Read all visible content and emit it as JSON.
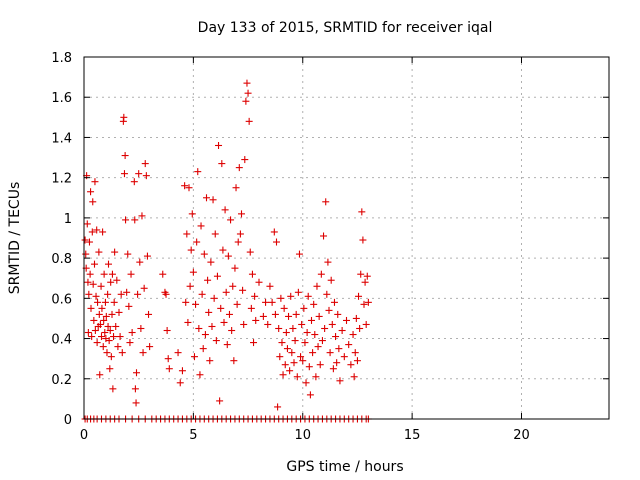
{
  "chart_data": {
    "type": "scatter",
    "title": "Day 133 of 2015, SRMTID for receiver iqal",
    "xlabel": "GPS time / hours",
    "ylabel": "SRMTID / TECUs",
    "xlim": [
      0,
      24
    ],
    "ylim": [
      0,
      1.8
    ],
    "xticks": [
      0,
      5,
      10,
      15,
      20
    ],
    "yticks": [
      0,
      0.2,
      0.4,
      0.6,
      0.8,
      1,
      1.2,
      1.4,
      1.6,
      1.8
    ],
    "ytick_labels": [
      "0",
      "0.2",
      "0.4",
      "0.6",
      "0.8",
      "1",
      "1.2",
      "1.4",
      "1.6",
      "1.8"
    ],
    "grid": true,
    "marker": "+",
    "color": "#dd0000",
    "series": [
      {
        "name": "SRMTID",
        "points": [
          [
            0.05,
            0.89
          ],
          [
            0.08,
            0.82
          ],
          [
            0.1,
            0.75
          ],
          [
            0.12,
            1.21
          ],
          [
            0.15,
            0.97
          ],
          [
            0.18,
            0.68
          ],
          [
            0.2,
            0.43
          ],
          [
            0.22,
            0.62
          ],
          [
            0.25,
            0.88
          ],
          [
            0.28,
            0.72
          ],
          [
            0.3,
            1.13
          ],
          [
            0.32,
            0.55
          ],
          [
            0.35,
            0.41
          ],
          [
            0.38,
            0.93
          ],
          [
            0.4,
            1.08
          ],
          [
            0.42,
            0.67
          ],
          [
            0.45,
            0.49
          ],
          [
            0.48,
            0.77
          ],
          [
            0.5,
            1.18
          ],
          [
            0.52,
            0.44
          ],
          [
            0.55,
            0.61
          ],
          [
            0.58,
            0.94
          ],
          [
            0.6,
            0.38
          ],
          [
            0.62,
            0.58
          ],
          [
            0.65,
            0.46
          ],
          [
            0.68,
            0.83
          ],
          [
            0.7,
            0.52
          ],
          [
            0.72,
            0.22
          ],
          [
            0.75,
            0.47
          ],
          [
            0.78,
            0.66
          ],
          [
            0.8,
            0.41
          ],
          [
            0.82,
            0.55
          ],
          [
            0.85,
            0.93
          ],
          [
            0.88,
            0.36
          ],
          [
            0.9,
            0.49
          ],
          [
            0.92,
            0.72
          ],
          [
            0.95,
            0.43
          ],
          [
            0.98,
            0.58
          ],
          [
            1.0,
            0.4
          ],
          [
            1.02,
            0.51
          ],
          [
            1.05,
            0.33
          ],
          [
            1.08,
            0.62
          ],
          [
            1.1,
            0.46
          ],
          [
            1.12,
            0.77
          ],
          [
            1.15,
            0.39
          ],
          [
            1.18,
            0.25
          ],
          [
            1.2,
            0.44
          ],
          [
            1.22,
            0.68
          ],
          [
            1.25,
            0.31
          ],
          [
            1.28,
            0.52
          ],
          [
            1.3,
            0.72
          ],
          [
            1.32,
            0.15
          ],
          [
            1.35,
            0.41
          ],
          [
            1.38,
            0.58
          ],
          [
            1.4,
            0.83
          ],
          [
            1.45,
            0.46
          ],
          [
            1.5,
            0.69
          ],
          [
            1.55,
            0.36
          ],
          [
            1.6,
            0.53
          ],
          [
            1.65,
            0.41
          ],
          [
            1.7,
            0.62
          ],
          [
            1.75,
            0.33
          ],
          [
            1.8,
            1.48
          ],
          [
            1.82,
            1.5
          ],
          [
            1.85,
            1.22
          ],
          [
            1.88,
            1.31
          ],
          [
            1.9,
            0.99
          ],
          [
            1.95,
            0.63
          ],
          [
            2.0,
            0.82
          ],
          [
            2.05,
            0.56
          ],
          [
            2.1,
            0.38
          ],
          [
            2.15,
            0.72
          ],
          [
            2.2,
            0.43
          ],
          [
            2.3,
            1.18
          ],
          [
            2.32,
            0.99
          ],
          [
            2.35,
            0.15
          ],
          [
            2.38,
            0.08
          ],
          [
            2.4,
            0.23
          ],
          [
            2.45,
            0.62
          ],
          [
            2.5,
            1.22
          ],
          [
            2.55,
            0.78
          ],
          [
            2.6,
            0.45
          ],
          [
            2.65,
            1.01
          ],
          [
            2.7,
            0.33
          ],
          [
            2.75,
            0.65
          ],
          [
            2.8,
            1.27
          ],
          [
            2.85,
            1.21
          ],
          [
            2.9,
            0.81
          ],
          [
            2.95,
            0.52
          ],
          [
            3.0,
            0.36
          ],
          [
            3.6,
            0.72
          ],
          [
            3.7,
            0.63
          ],
          [
            3.75,
            0.62
          ],
          [
            3.8,
            0.44
          ],
          [
            3.85,
            0.3
          ],
          [
            3.9,
            0.25
          ],
          [
            4.3,
            0.33
          ],
          [
            4.4,
            0.18
          ],
          [
            4.5,
            0.24
          ],
          [
            4.6,
            1.16
          ],
          [
            4.65,
            0.58
          ],
          [
            4.7,
            0.92
          ],
          [
            4.75,
            0.48
          ],
          [
            4.8,
            1.15
          ],
          [
            4.85,
            0.66
          ],
          [
            4.9,
            0.84
          ],
          [
            4.95,
            1.02
          ],
          [
            5.0,
            0.73
          ],
          [
            5.05,
            0.31
          ],
          [
            5.1,
            0.57
          ],
          [
            5.15,
            0.88
          ],
          [
            5.2,
            1.23
          ],
          [
            5.25,
            0.45
          ],
          [
            5.3,
            0.22
          ],
          [
            5.35,
            0.96
          ],
          [
            5.4,
            0.62
          ],
          [
            5.45,
            0.35
          ],
          [
            5.5,
            0.82
          ],
          [
            5.55,
            0.42
          ],
          [
            5.6,
            1.1
          ],
          [
            5.65,
            0.69
          ],
          [
            5.7,
            0.53
          ],
          [
            5.75,
            0.29
          ],
          [
            5.8,
            0.78
          ],
          [
            5.85,
            0.46
          ],
          [
            5.9,
            1.09
          ],
          [
            5.95,
            0.6
          ],
          [
            6.0,
            0.92
          ],
          [
            6.05,
            0.39
          ],
          [
            6.1,
            0.71
          ],
          [
            6.15,
            1.36
          ],
          [
            6.2,
            0.09
          ],
          [
            6.25,
            0.55
          ],
          [
            6.3,
            1.27
          ],
          [
            6.35,
            0.84
          ],
          [
            6.4,
            0.48
          ],
          [
            6.45,
            1.04
          ],
          [
            6.5,
            0.63
          ],
          [
            6.55,
            0.37
          ],
          [
            6.6,
            0.81
          ],
          [
            6.65,
            0.52
          ],
          [
            6.7,
            0.99
          ],
          [
            6.75,
            0.44
          ],
          [
            6.8,
            0.66
          ],
          [
            6.85,
            0.29
          ],
          [
            6.9,
            0.75
          ],
          [
            6.95,
            1.15
          ],
          [
            7.0,
            0.57
          ],
          [
            7.05,
            0.88
          ],
          [
            7.1,
            1.25
          ],
          [
            7.15,
            0.92
          ],
          [
            7.2,
            1.02
          ],
          [
            7.25,
            0.64
          ],
          [
            7.3,
            0.47
          ],
          [
            7.35,
            1.29
          ],
          [
            7.4,
            1.58
          ],
          [
            7.45,
            1.67
          ],
          [
            7.5,
            1.62
          ],
          [
            7.55,
            1.48
          ],
          [
            7.6,
            0.83
          ],
          [
            7.65,
            0.55
          ],
          [
            7.7,
            0.72
          ],
          [
            7.75,
            0.38
          ],
          [
            7.8,
            0.61
          ],
          [
            7.85,
            0.49
          ],
          [
            8.0,
            0.68
          ],
          [
            8.2,
            0.51
          ],
          [
            8.3,
            0.58
          ],
          [
            8.4,
            0.47
          ],
          [
            8.5,
            0.66
          ],
          [
            8.6,
            0.58
          ],
          [
            8.7,
            0.93
          ],
          [
            8.75,
            0.52
          ],
          [
            8.8,
            0.88
          ],
          [
            8.85,
            0.06
          ],
          [
            8.9,
            0.45
          ],
          [
            8.95,
            0.31
          ],
          [
            9.0,
            0.6
          ],
          [
            9.05,
            0.38
          ],
          [
            9.1,
            0.22
          ],
          [
            9.15,
            0.55
          ],
          [
            9.2,
            0.27
          ],
          [
            9.25,
            0.43
          ],
          [
            9.3,
            0.35
          ],
          [
            9.35,
            0.51
          ],
          [
            9.4,
            0.24
          ],
          [
            9.45,
            0.61
          ],
          [
            9.5,
            0.33
          ],
          [
            9.55,
            0.45
          ],
          [
            9.6,
            0.28
          ],
          [
            9.65,
            0.39
          ],
          [
            9.7,
            0.52
          ],
          [
            9.75,
            0.21
          ],
          [
            9.8,
            0.63
          ],
          [
            9.85,
            0.82
          ],
          [
            9.9,
            0.31
          ],
          [
            9.95,
            0.47
          ],
          [
            10.0,
            0.29
          ],
          [
            10.05,
            0.55
          ],
          [
            10.1,
            0.38
          ],
          [
            10.15,
            0.18
          ],
          [
            10.2,
            0.43
          ],
          [
            10.25,
            0.61
          ],
          [
            10.3,
            0.26
          ],
          [
            10.35,
            0.12
          ],
          [
            10.4,
            0.49
          ],
          [
            10.45,
            0.33
          ],
          [
            10.5,
            0.57
          ],
          [
            10.55,
            0.42
          ],
          [
            10.6,
            0.21
          ],
          [
            10.65,
            0.66
          ],
          [
            10.7,
            0.36
          ],
          [
            10.75,
            0.51
          ],
          [
            10.8,
            0.27
          ],
          [
            10.85,
            0.72
          ],
          [
            10.9,
            0.39
          ],
          [
            10.95,
            0.91
          ],
          [
            11.0,
            0.45
          ],
          [
            11.05,
            1.08
          ],
          [
            11.1,
            0.62
          ],
          [
            11.15,
            0.78
          ],
          [
            11.2,
            0.54
          ],
          [
            11.25,
            0.33
          ],
          [
            11.3,
            0.69
          ],
          [
            11.35,
            0.47
          ],
          [
            11.4,
            0.25
          ],
          [
            11.45,
            0.58
          ],
          [
            11.5,
            0.41
          ],
          [
            11.55,
            0.28
          ],
          [
            11.6,
            0.52
          ],
          [
            11.65,
            0.35
          ],
          [
            11.7,
            0.19
          ],
          [
            11.8,
            0.44
          ],
          [
            11.9,
            0.31
          ],
          [
            12.0,
            0.49
          ],
          [
            12.1,
            0.37
          ],
          [
            12.2,
            0.27
          ],
          [
            12.3,
            0.42
          ],
          [
            12.35,
            0.21
          ],
          [
            12.4,
            0.33
          ],
          [
            12.45,
            0.5
          ],
          [
            12.5,
            0.29
          ],
          [
            12.55,
            0.61
          ],
          [
            12.6,
            0.45
          ],
          [
            12.65,
            0.72
          ],
          [
            12.7,
            1.03
          ],
          [
            12.75,
            0.89
          ],
          [
            12.8,
            0.57
          ],
          [
            12.85,
            0.68
          ],
          [
            12.9,
            0.47
          ],
          [
            12.95,
            0.71
          ],
          [
            13.0,
            0.58
          ]
        ]
      },
      {
        "name": "SRMTID zero values",
        "points": [
          [
            0.05,
            0
          ],
          [
            0.15,
            0
          ],
          [
            0.3,
            0
          ],
          [
            0.45,
            0
          ],
          [
            0.6,
            0
          ],
          [
            0.8,
            0
          ],
          [
            1.0,
            0
          ],
          [
            1.2,
            0
          ],
          [
            1.4,
            0
          ],
          [
            1.6,
            0
          ],
          [
            1.9,
            0
          ],
          [
            2.2,
            0
          ],
          [
            2.5,
            0
          ],
          [
            2.8,
            0
          ],
          [
            3.1,
            0
          ],
          [
            3.3,
            0
          ],
          [
            3.5,
            0
          ],
          [
            3.7,
            0
          ],
          [
            3.9,
            0
          ],
          [
            4.1,
            0
          ],
          [
            4.3,
            0
          ],
          [
            4.5,
            0
          ],
          [
            4.7,
            0
          ],
          [
            4.9,
            0
          ],
          [
            5.1,
            0
          ],
          [
            5.3,
            0
          ],
          [
            5.5,
            0
          ],
          [
            5.7,
            0
          ],
          [
            5.9,
            0
          ],
          [
            6.1,
            0
          ],
          [
            6.3,
            0
          ],
          [
            6.5,
            0
          ],
          [
            6.7,
            0
          ],
          [
            6.9,
            0
          ],
          [
            7.1,
            0
          ],
          [
            7.3,
            0
          ],
          [
            7.5,
            0
          ],
          [
            7.7,
            0
          ],
          [
            7.9,
            0
          ],
          [
            8.1,
            0
          ],
          [
            8.3,
            0
          ],
          [
            8.5,
            0
          ],
          [
            8.7,
            0
          ],
          [
            8.9,
            0
          ],
          [
            9.1,
            0
          ],
          [
            9.3,
            0
          ],
          [
            9.5,
            0
          ],
          [
            9.7,
            0
          ],
          [
            9.9,
            0
          ],
          [
            10.1,
            0
          ],
          [
            10.3,
            0
          ],
          [
            10.5,
            0
          ],
          [
            10.7,
            0
          ],
          [
            10.9,
            0
          ],
          [
            11.1,
            0
          ],
          [
            11.3,
            0
          ],
          [
            11.5,
            0
          ],
          [
            11.7,
            0
          ],
          [
            11.9,
            0
          ],
          [
            12.1,
            0
          ],
          [
            12.3,
            0
          ],
          [
            12.5,
            0
          ],
          [
            12.7,
            0
          ],
          [
            12.9,
            0
          ],
          [
            13.0,
            0
          ]
        ]
      }
    ]
  }
}
